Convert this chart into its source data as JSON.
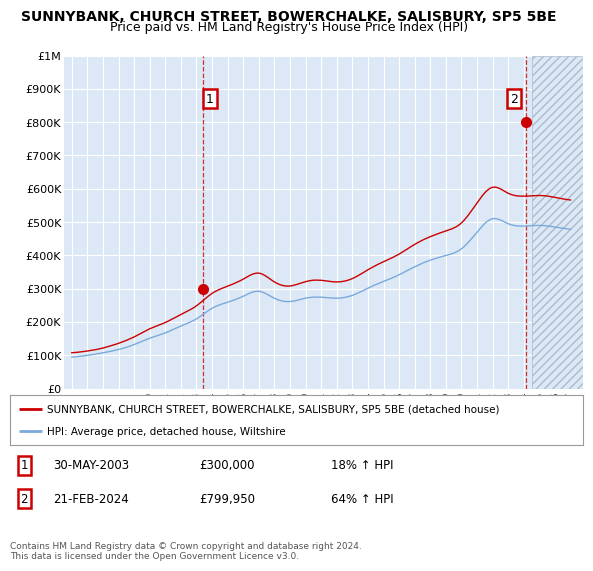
{
  "title": "SUNNYBANK, CHURCH STREET, BOWERCHALKE, SALISBURY, SP5 5BE",
  "subtitle": "Price paid vs. HM Land Registry's House Price Index (HPI)",
  "title_fontsize": 10,
  "subtitle_fontsize": 9,
  "background_color": "#ffffff",
  "plot_bg_color": "#dce8f5",
  "grid_color": "#ffffff",
  "legend_line1": "SUNNYBANK, CHURCH STREET, BOWERCHALKE, SALISBURY, SP5 5BE (detached house)",
  "legend_line2": "HPI: Average price, detached house, Wiltshire",
  "red_line_color": "#cc0000",
  "blue_line_color": "#7aaadd",
  "sale1_year": 2003.41,
  "sale1_price": 300000,
  "sale2_year": 2024.12,
  "sale2_price": 799950,
  "annotation1": "1",
  "annotation2": "2",
  "footnote": "Contains HM Land Registry data © Crown copyright and database right 2024.\nThis data is licensed under the Open Government Licence v3.0.",
  "ylim": [
    0,
    1000000
  ],
  "yticks": [
    0,
    100000,
    200000,
    300000,
    400000,
    500000,
    600000,
    700000,
    800000,
    900000,
    1000000
  ],
  "ytick_labels": [
    "£0",
    "£100K",
    "£200K",
    "£300K",
    "£400K",
    "£500K",
    "£600K",
    "£700K",
    "£800K",
    "£900K",
    "£1M"
  ],
  "xlim_left": 1994.5,
  "xlim_right": 2027.8,
  "hatch_start": 2024.5,
  "xtick_years": [
    1995,
    1996,
    1997,
    1998,
    1999,
    2000,
    2001,
    2002,
    2003,
    2004,
    2005,
    2006,
    2007,
    2008,
    2009,
    2010,
    2011,
    2012,
    2013,
    2014,
    2015,
    2016,
    2017,
    2018,
    2019,
    2020,
    2021,
    2022,
    2023,
    2024,
    2025,
    2026,
    2027
  ]
}
